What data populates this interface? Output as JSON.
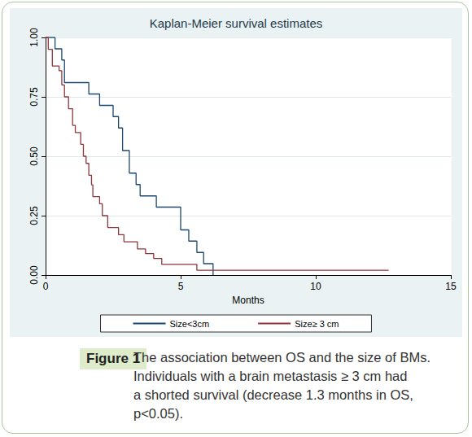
{
  "chart_data": {
    "type": "line",
    "line_style": "step",
    "title": "Kaplan-Meier survival estimates",
    "x_label": "Months",
    "xlim": [
      0,
      15
    ],
    "xticks": [
      0,
      5,
      10,
      15
    ],
    "ylim": [
      0,
      1
    ],
    "yticks": [
      {
        "value": 0,
        "label": "0.00"
      },
      {
        "value": 0.25,
        "label": "0.25"
      },
      {
        "value": 0.5,
        "label": "0.50"
      },
      {
        "value": 0.75,
        "label": "0.75"
      },
      {
        "value": 1,
        "label": "1.00"
      }
    ],
    "grid": true,
    "legend": "bottom",
    "series": [
      {
        "name": "Size<3cm",
        "color": "#1a476f",
        "x": [
          0,
          0.35,
          0.6,
          0.7,
          1.6,
          2.0,
          2.5,
          2.7,
          2.85,
          3.1,
          3.35,
          3.5,
          4.1,
          5.0,
          5.3,
          5.6,
          5.85,
          6.2
        ],
        "values": [
          1.0,
          0.952,
          0.905,
          0.81,
          0.762,
          0.714,
          0.667,
          0.619,
          0.524,
          0.429,
          0.381,
          0.333,
          0.286,
          0.19,
          0.143,
          0.095,
          0.048,
          0.0
        ]
      },
      {
        "name": "Size≥ 3 cm",
        "color": "#90353b",
        "x": [
          0,
          0.1,
          0.25,
          0.5,
          0.6,
          0.7,
          0.85,
          1.0,
          1.1,
          1.3,
          1.4,
          1.5,
          1.6,
          1.7,
          1.75,
          2.0,
          2.1,
          2.3,
          2.7,
          2.9,
          3.4,
          3.7,
          4.0,
          4.3,
          5.6,
          12.7
        ],
        "values": [
          1.0,
          0.95,
          0.88,
          0.86,
          0.8,
          0.75,
          0.7,
          0.63,
          0.6,
          0.55,
          0.5,
          0.47,
          0.42,
          0.38,
          0.33,
          0.3,
          0.25,
          0.2,
          0.17,
          0.14,
          0.11,
          0.09,
          0.07,
          0.045,
          0.02,
          0.02
        ]
      }
    ]
  },
  "figure": {
    "label": "Figure 1",
    "caption": [
      "The association between OS and the size of BMs.",
      "Individuals with a brain metastasis ≥ 3 cm had",
      "a shorted survival (decrease 1.3 months in OS,",
      "p<0.05)."
    ]
  }
}
